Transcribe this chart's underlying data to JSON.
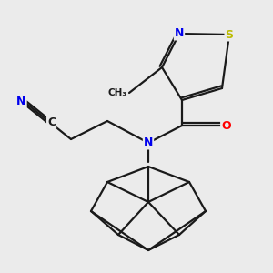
{
  "background_color": "#ebebeb",
  "bond_color": "#1a1a1a",
  "atom_colors": {
    "N": "#0000ee",
    "O": "#ff0000",
    "S": "#bbbb00",
    "C": "#1a1a1a"
  },
  "figsize": [
    3.0,
    3.0
  ],
  "dpi": 100,
  "lw": 1.6,
  "fontsize": 9
}
